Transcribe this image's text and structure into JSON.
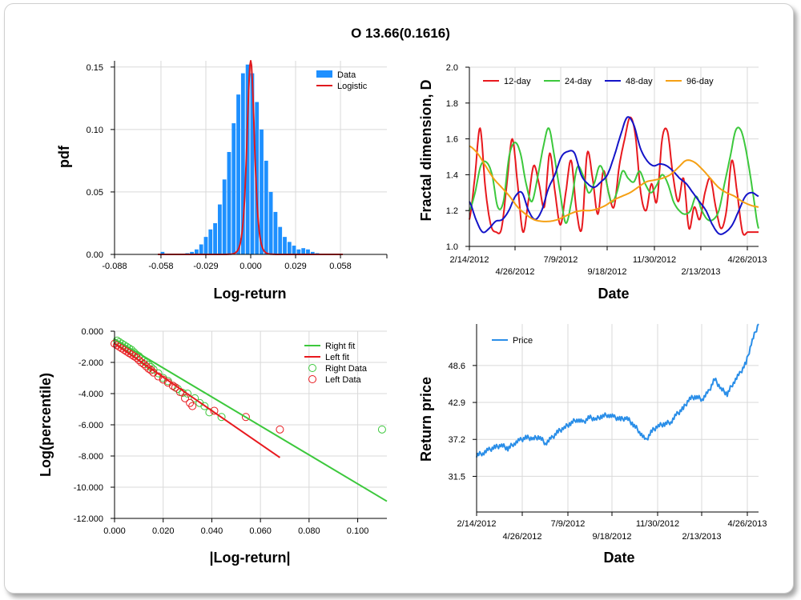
{
  "title": "O 13.66(0.1616)",
  "colors": {
    "data_blue": "#1e90ff",
    "fit_red": "#e0191e",
    "green": "#3cc83c",
    "red": "#e8191e",
    "blue": "#1414c8",
    "orange": "#f5a014",
    "price_blue": "#2a8ee8"
  },
  "chart_data": [
    {
      "type": "bar",
      "name": "pdf",
      "xlabel": "Log-return",
      "ylabel": "pdf",
      "xlim": [
        -0.088,
        0.088
      ],
      "ylim": [
        0,
        0.155
      ],
      "xticks": [
        "-0.088",
        "-0.058",
        "-0.029",
        "0.000",
        "0.029",
        "0.058"
      ],
      "yticks": [
        "0.00",
        "0.05",
        "0.10",
        "0.15"
      ],
      "grid": true,
      "legend": [
        "Data",
        "Logistic"
      ],
      "legend_position": "top-right",
      "bins": {
        "width": 0.003,
        "centers": [
          -0.057,
          -0.041,
          -0.038,
          -0.035,
          -0.032,
          -0.029,
          -0.026,
          -0.023,
          -0.02,
          -0.017,
          -0.014,
          -0.011,
          -0.008,
          -0.005,
          -0.002,
          0.001,
          0.004,
          0.007,
          0.01,
          0.013,
          0.016,
          0.019,
          0.022,
          0.025,
          0.028,
          0.031,
          0.034,
          0.037,
          0.04,
          0.043
        ],
        "values": [
          0.002,
          0.001,
          0.002,
          0.004,
          0.008,
          0.014,
          0.02,
          0.025,
          0.04,
          0.06,
          0.082,
          0.105,
          0.128,
          0.145,
          0.152,
          0.145,
          0.122,
          0.1,
          0.075,
          0.05,
          0.034,
          0.022,
          0.014,
          0.01,
          0.007,
          0.004,
          0.005,
          0.004,
          0.002,
          0.001
        ]
      },
      "logistic": {
        "mu": 0.0,
        "s": 0.0016
      }
    },
    {
      "type": "line",
      "name": "fractal",
      "xlabel": "Date",
      "ylabel": "Fractal dimension, D",
      "ylim": [
        1.0,
        2.0
      ],
      "yticks": [
        "1.0",
        "1.2",
        "1.4",
        "1.6",
        "1.8",
        "2.0"
      ],
      "xticks": [
        "2/14/2012",
        "4/26/2012",
        "7/9/2012",
        "9/18/2012",
        "11/30/2012",
        "2/13/2013",
        "4/26/2013"
      ],
      "grid": true,
      "legend_position": "top",
      "series": [
        {
          "name": "12-day",
          "color": "#e8191e",
          "values": [
            1.15,
            1.38,
            1.66,
            1.32,
            1.12,
            1.08,
            1.1,
            1.35,
            1.6,
            1.35,
            1.08,
            1.25,
            1.45,
            1.35,
            1.22,
            1.52,
            1.3,
            1.12,
            1.3,
            1.48,
            1.2,
            1.1,
            1.52,
            1.38,
            1.18,
            1.42,
            1.3,
            1.22,
            1.45,
            1.6,
            1.72,
            1.62,
            1.3,
            1.2,
            1.35,
            1.25,
            1.6,
            1.64,
            1.4,
            1.25,
            1.38,
            1.1,
            1.22,
            1.15,
            1.3,
            1.38,
            1.22,
            1.1,
            1.2,
            1.48,
            1.3,
            1.08,
            1.08,
            1.08,
            1.08
          ]
        },
        {
          "name": "24-day",
          "color": "#3cc83c",
          "values": [
            1.2,
            1.3,
            1.45,
            1.47,
            1.4,
            1.22,
            1.25,
            1.5,
            1.58,
            1.52,
            1.35,
            1.25,
            1.38,
            1.55,
            1.66,
            1.5,
            1.3,
            1.13,
            1.25,
            1.44,
            1.4,
            1.3,
            1.35,
            1.45,
            1.38,
            1.25,
            1.3,
            1.42,
            1.38,
            1.36,
            1.42,
            1.35,
            1.3,
            1.34,
            1.4,
            1.35,
            1.25,
            1.2,
            1.18,
            1.2,
            1.28,
            1.2,
            1.15,
            1.15,
            1.2,
            1.35,
            1.5,
            1.65,
            1.64,
            1.5,
            1.3,
            1.1
          ]
        },
        {
          "name": "48-day",
          "color": "#1414c8",
          "values": [
            1.25,
            1.15,
            1.08,
            1.1,
            1.14,
            1.15,
            1.2,
            1.28,
            1.3,
            1.2,
            1.15,
            1.2,
            1.32,
            1.4,
            1.5,
            1.53,
            1.52,
            1.4,
            1.35,
            1.33,
            1.36,
            1.4,
            1.5,
            1.62,
            1.72,
            1.68,
            1.55,
            1.48,
            1.45,
            1.46,
            1.45,
            1.42,
            1.38,
            1.35,
            1.3,
            1.25,
            1.2,
            1.12,
            1.07,
            1.08,
            1.12,
            1.2,
            1.28,
            1.3,
            1.28
          ]
        },
        {
          "name": "96-day",
          "color": "#f5a014",
          "values": [
            1.56,
            1.52,
            1.45,
            1.38,
            1.33,
            1.28,
            1.22,
            1.18,
            1.15,
            1.14,
            1.14,
            1.15,
            1.17,
            1.19,
            1.2,
            1.2,
            1.21,
            1.23,
            1.26,
            1.28,
            1.3,
            1.33,
            1.36,
            1.37,
            1.38,
            1.4,
            1.44,
            1.48,
            1.47,
            1.43,
            1.38,
            1.33,
            1.3,
            1.28,
            1.25,
            1.23,
            1.22
          ]
        }
      ]
    },
    {
      "type": "scatter",
      "name": "tails",
      "xlabel": "|Log-return|",
      "ylabel": "Log(percentile)",
      "xlim": [
        0.0,
        0.112
      ],
      "ylim": [
        -12.0,
        0.0
      ],
      "xticks": [
        "0.000",
        "0.020",
        "0.040",
        "0.060",
        "0.080",
        "0.100"
      ],
      "yticks": [
        "0.000",
        "-2.000",
        "-4.000",
        "-6.000",
        "-8.000",
        "-10.000",
        "-12.000"
      ],
      "grid": true,
      "legend": [
        "Right fit",
        "Left fit",
        "Right Data",
        "Left Data"
      ],
      "legend_position": "top-right",
      "right_fit": {
        "x": [
          0.0,
          0.112
        ],
        "y": [
          -0.5,
          -10.9
        ]
      },
      "left_fit": {
        "x": [
          0.0,
          0.068
        ],
        "y": [
          -0.8,
          -8.1
        ]
      },
      "right_data": {
        "x": [
          0.001,
          0.002,
          0.003,
          0.004,
          0.005,
          0.006,
          0.007,
          0.008,
          0.009,
          0.01,
          0.011,
          0.012,
          0.013,
          0.014,
          0.015,
          0.016,
          0.018,
          0.02,
          0.022,
          0.024,
          0.026,
          0.028,
          0.03,
          0.033,
          0.035,
          0.037,
          0.039,
          0.044,
          0.11
        ],
        "y": [
          -0.6,
          -0.7,
          -0.8,
          -0.9,
          -1.0,
          -1.1,
          -1.2,
          -1.35,
          -1.5,
          -1.6,
          -1.75,
          -1.9,
          -2.0,
          -2.15,
          -2.3,
          -2.45,
          -2.7,
          -3.0,
          -3.2,
          -3.5,
          -3.7,
          -3.95,
          -4.0,
          -4.3,
          -4.6,
          -4.8,
          -5.2,
          -5.5,
          -6.3
        ]
      },
      "left_data": {
        "x": [
          0.0,
          0.001,
          0.002,
          0.003,
          0.004,
          0.005,
          0.006,
          0.007,
          0.008,
          0.009,
          0.01,
          0.011,
          0.012,
          0.013,
          0.014,
          0.015,
          0.016,
          0.018,
          0.02,
          0.022,
          0.024,
          0.025,
          0.027,
          0.029,
          0.031,
          0.032,
          0.041,
          0.054,
          0.068
        ],
        "y": [
          -0.8,
          -0.9,
          -1.0,
          -1.1,
          -1.2,
          -1.3,
          -1.4,
          -1.5,
          -1.6,
          -1.7,
          -1.85,
          -2.0,
          -2.1,
          -2.25,
          -2.4,
          -2.5,
          -2.65,
          -2.9,
          -3.1,
          -3.3,
          -3.5,
          -3.6,
          -3.9,
          -4.3,
          -4.6,
          -4.8,
          -5.1,
          -5.5,
          -6.3
        ]
      }
    },
    {
      "type": "line",
      "name": "price",
      "xlabel": "Date",
      "ylabel": "Return price",
      "ylim": [
        26.0,
        55.0
      ],
      "yticks": [
        "31.5",
        "37.2",
        "42.9",
        "48.6"
      ],
      "xticks": [
        "2/14/2012",
        "4/26/2012",
        "7/9/2012",
        "9/18/2012",
        "11/30/2012",
        "2/13/2013",
        "4/26/2013"
      ],
      "grid": true,
      "legend_position": "top-left",
      "series": [
        {
          "name": "Price",
          "color": "#2a8ee8",
          "values": [
            34.8,
            35.1,
            35.6,
            36.0,
            36.3,
            35.8,
            36.6,
            37.1,
            37.5,
            37.3,
            37.6,
            36.6,
            37.4,
            38.4,
            39.0,
            39.7,
            40.3,
            39.8,
            40.6,
            40.3,
            40.8,
            41.0,
            40.6,
            40.3,
            40.5,
            39.5,
            38.4,
            37.0,
            38.5,
            39.3,
            39.6,
            39.9,
            41.1,
            42.0,
            43.5,
            43.8,
            43.4,
            44.5,
            46.5,
            45.0,
            44.2,
            46.0,
            47.3,
            49.0,
            52.5,
            55.0
          ]
        }
      ]
    }
  ]
}
